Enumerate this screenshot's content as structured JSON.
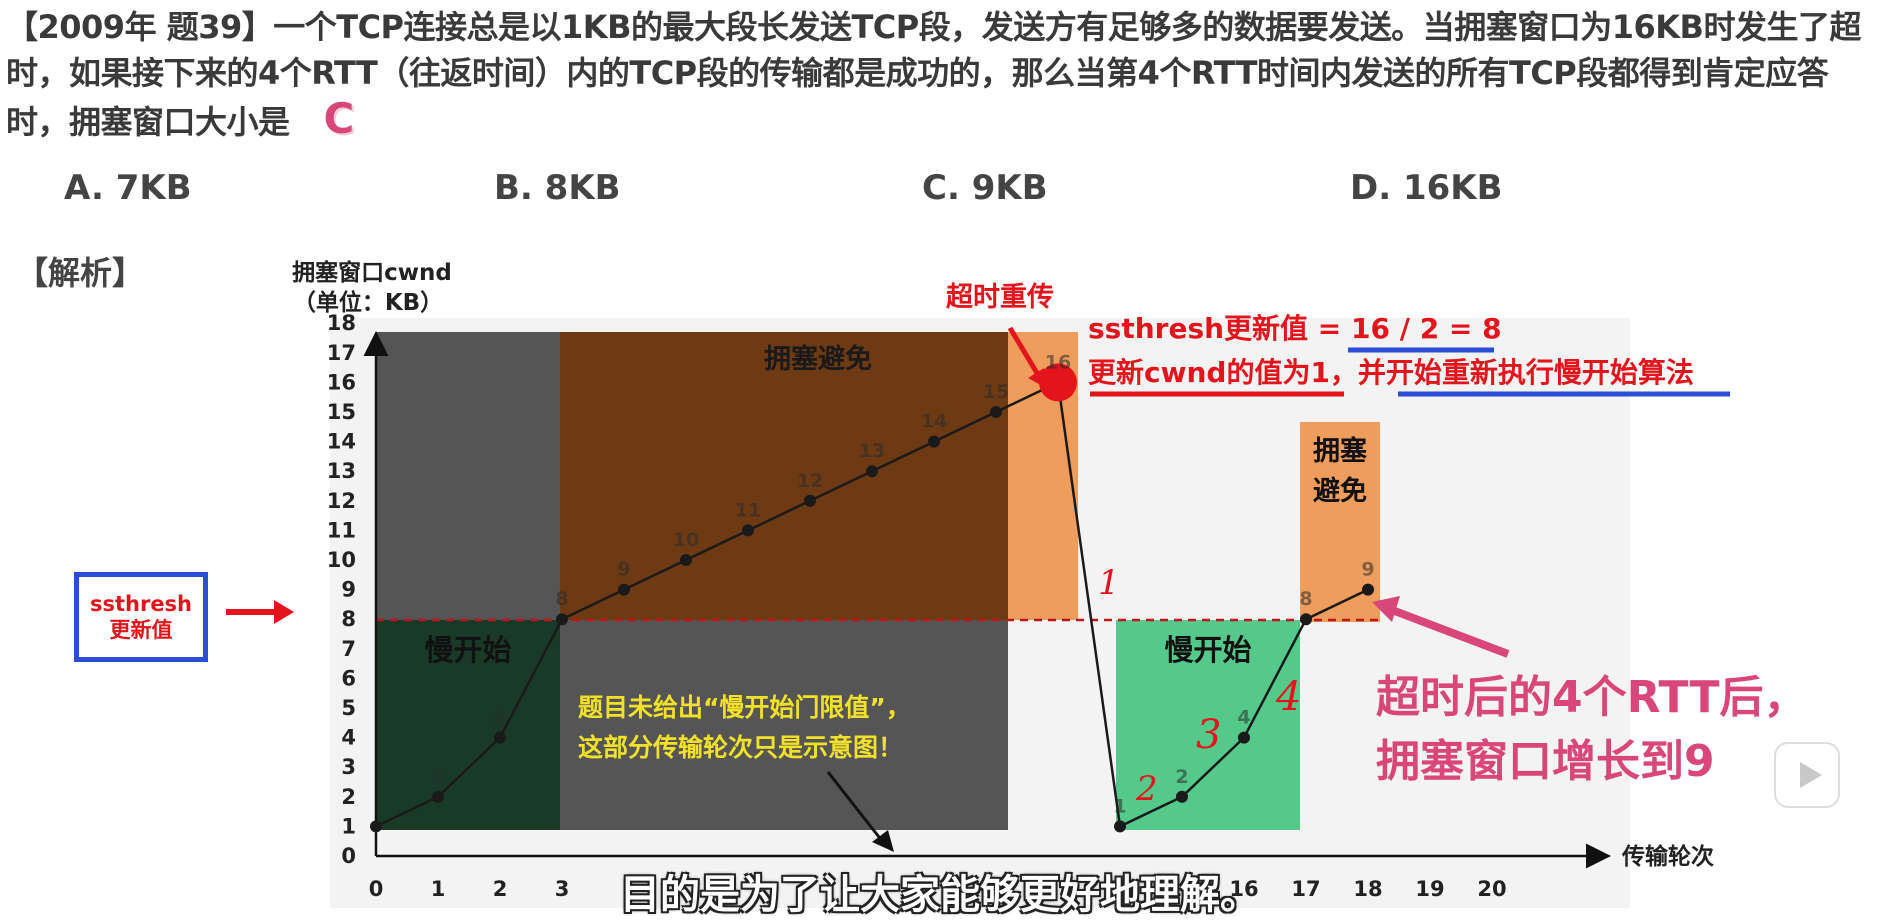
{
  "question": {
    "text": "【2009年 题39】一个TCP连接总是以1KB的最大段长发送TCP段，发送方有足够多的数据要发送。当拥塞窗口为16KB时发生了超时，如果接下来的4个RTT（往返时间）内的TCP段的传输都是成功的，那么当第4个RTT时间内发送的所有TCP段都得到肯定应答时，拥塞窗口大小是",
    "answer_mark": "C"
  },
  "options": [
    {
      "label": "A. 7KB"
    },
    {
      "label": "B. 8KB"
    },
    {
      "label": "C. 9KB"
    },
    {
      "label": "D. 16KB"
    }
  ],
  "analysis_label": "【解析】",
  "ssthresh_box": {
    "line1": "ssthresh",
    "line2": "更新值"
  },
  "annotations": {
    "timeout_retransmit": "超时重传",
    "ssthresh_update": "ssthresh更新值 = 16 / 2 = 8",
    "cwnd_reset": "更新cwnd的值为1，并开始重新执行慢开始算法",
    "slow_start_1": "慢开始",
    "slow_start_2": "慢开始",
    "cong_avoid_1": "拥塞避免",
    "cong_avoid_2_line1": "拥塞",
    "cong_avoid_2_line2": "避免",
    "yellow_note_line1": "题目未给出“慢开始门限值”，",
    "yellow_note_line2": "这部分传输轮次只是示意图！",
    "result_line1": "超时后的4个RTT后，",
    "result_line2": "拥塞窗口增长到9",
    "handwritten_marks": [
      "1",
      "2",
      "3",
      "4"
    ]
  },
  "subtitle": "目的是为了让大家能够更好地理解。",
  "colors": {
    "red": "#e3141b",
    "blue": "#2a4fd6",
    "pink": "#d8467a",
    "yellow_text": "#f2e12a",
    "dark_gray": "#555555",
    "brown": "#6e3a14",
    "orange": "#ee9d5c",
    "green": "#55c98a",
    "dark_green": "#1a3a28"
  },
  "chart_data": {
    "type": "line",
    "ylabel_line1": "拥塞窗口cwnd",
    "ylabel_line2": "（单位：KB）",
    "xlabel": "传输轮次",
    "ylim": [
      0,
      18
    ],
    "xlim": [
      0,
      20
    ],
    "y_ticks": [
      0,
      1,
      2,
      3,
      4,
      5,
      6,
      7,
      8,
      9,
      10,
      11,
      12,
      13,
      14,
      15,
      16,
      17,
      18
    ],
    "x_ticks": [
      0,
      1,
      2,
      3,
      14,
      15,
      16,
      17,
      18,
      19,
      20
    ],
    "ssthresh": 8,
    "series": [
      {
        "values_xy": [
          [
            0,
            1
          ],
          [
            1,
            2
          ],
          [
            2,
            4
          ],
          [
            3,
            8
          ],
          [
            4,
            9
          ],
          [
            5,
            10
          ],
          [
            6,
            11
          ],
          [
            7,
            12
          ],
          [
            8,
            13
          ],
          [
            9,
            14
          ],
          [
            10,
            15
          ],
          [
            11,
            16
          ],
          [
            12,
            1
          ],
          [
            13,
            2
          ],
          [
            14,
            4
          ],
          [
            15,
            8
          ],
          [
            16,
            9
          ]
        ],
        "point_labels": [
          "",
          "2",
          "4",
          "8",
          "9",
          "10",
          "11",
          "12",
          "13",
          "14",
          "15",
          "16",
          "1",
          "2",
          "4",
          "8",
          "9"
        ]
      }
    ],
    "timeout_point": [
      11,
      16
    ]
  }
}
